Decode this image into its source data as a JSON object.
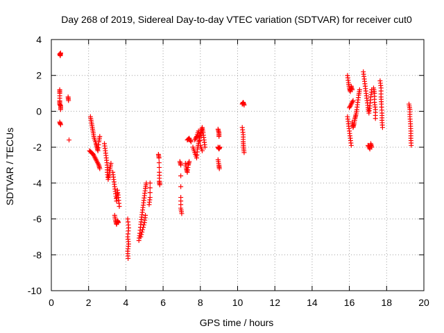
{
  "chart_data": {
    "type": "scatter",
    "title": "Day 268 of 2019, Sidereal Day-to-day VTEC variation (SDTVAR) for receiver cut0",
    "xlabel": "GPS time / hours",
    "ylabel": "SDTVAR / TECUs",
    "xlim": [
      0,
      20
    ],
    "ylim": [
      -10,
      4
    ],
    "x_ticks": [
      0,
      2,
      4,
      6,
      8,
      10,
      12,
      14,
      16,
      18,
      20
    ],
    "y_ticks": [
      -10,
      -8,
      -6,
      -4,
      -2,
      0,
      2,
      4
    ],
    "x_tick_labels": [
      "0",
      "2",
      "4",
      "6",
      "8",
      "10",
      "12",
      "14",
      "16",
      "18",
      "20"
    ],
    "y_tick_labels": [
      "-10",
      "-8",
      "-6",
      "-4",
      "-2",
      "0",
      "2",
      "4"
    ],
    "grid": true,
    "marker": "plus",
    "color": "#ff0000",
    "series": [
      {
        "name": "SDTVAR",
        "segments": [
          [
            [
              0.45,
              3.2
            ],
            [
              0.48,
              3.1
            ],
            [
              0.5,
              3.25
            ]
          ],
          [
            [
              0.45,
              1.2
            ],
            [
              0.45,
              1.0
            ],
            [
              0.45,
              0.6
            ],
            [
              0.45,
              0.4
            ],
            [
              0.5,
              0.3
            ],
            [
              0.5,
              0.1
            ]
          ],
          [
            [
              0.45,
              -0.6
            ],
            [
              0.5,
              -0.75
            ]
          ],
          [
            [
              0.9,
              0.8
            ],
            [
              0.92,
              0.6
            ]
          ],
          [
            [
              0.95,
              -1.6
            ]
          ],
          [
            [
              2.1,
              -0.3
            ],
            [
              2.15,
              -0.6
            ],
            [
              2.2,
              -0.9
            ],
            [
              2.25,
              -1.2
            ],
            [
              2.3,
              -1.5
            ],
            [
              2.4,
              -1.8
            ],
            [
              2.45,
              -2.0
            ],
            [
              2.5,
              -2.2
            ],
            [
              2.55,
              -1.7
            ],
            [
              2.6,
              -1.4
            ]
          ],
          [
            [
              2.05,
              -2.2
            ],
            [
              2.15,
              -2.3
            ],
            [
              2.25,
              -2.4
            ],
            [
              2.35,
              -2.6
            ],
            [
              2.45,
              -2.8
            ],
            [
              2.55,
              -3.0
            ],
            [
              2.6,
              -3.2
            ]
          ],
          [
            [
              2.85,
              -1.8
            ],
            [
              2.9,
              -2.2
            ],
            [
              2.95,
              -2.6
            ],
            [
              3.0,
              -3.0
            ],
            [
              3.0,
              -3.4
            ],
            [
              3.05,
              -3.8
            ],
            [
              3.1,
              -3.5
            ],
            [
              3.15,
              -3.2
            ],
            [
              3.2,
              -2.9
            ]
          ],
          [
            [
              3.3,
              -3.4
            ],
            [
              3.35,
              -3.8
            ],
            [
              3.4,
              -4.2
            ],
            [
              3.45,
              -4.6
            ],
            [
              3.5,
              -5.0
            ],
            [
              3.55,
              -4.4
            ],
            [
              3.6,
              -4.8
            ],
            [
              3.65,
              -5.3
            ]
          ],
          [
            [
              3.4,
              -5.8
            ],
            [
              3.45,
              -6.1
            ],
            [
              3.5,
              -6.3
            ],
            [
              3.55,
              -6.1
            ],
            [
              3.6,
              -6.2
            ]
          ],
          [
            [
              4.1,
              -6.0
            ],
            [
              4.15,
              -6.5
            ],
            [
              4.1,
              -7.0
            ],
            [
              4.15,
              -7.4
            ],
            [
              4.1,
              -7.8
            ],
            [
              4.12,
              -8.2
            ]
          ],
          [
            [
              4.7,
              -7.2
            ],
            [
              4.75,
              -6.8
            ],
            [
              4.8,
              -6.3
            ],
            [
              4.85,
              -5.9
            ],
            [
              4.9,
              -5.5
            ],
            [
              4.95,
              -5.1
            ],
            [
              5.0,
              -4.7
            ],
            [
              5.05,
              -4.3
            ],
            [
              5.1,
              -4.0
            ]
          ],
          [
            [
              4.8,
              -7.0
            ],
            [
              4.9,
              -6.6
            ],
            [
              5.0,
              -6.2
            ],
            [
              5.05,
              -5.8
            ]
          ],
          [
            [
              5.25,
              -5.2
            ],
            [
              5.3,
              -4.8
            ],
            [
              5.3,
              -4.0
            ]
          ],
          [
            [
              5.75,
              -2.4
            ],
            [
              5.78,
              -2.6
            ],
            [
              5.8,
              -3.4
            ],
            [
              5.8,
              -3.9
            ],
            [
              5.82,
              -4.1
            ]
          ],
          [
            [
              6.9,
              -2.8
            ],
            [
              6.95,
              -3.0
            ],
            [
              6.95,
              -4.8
            ],
            [
              6.95,
              -5.4
            ],
            [
              7.0,
              -5.7
            ]
          ],
          [
            [
              7.2,
              -2.9
            ],
            [
              7.25,
              -3.2
            ],
            [
              7.3,
              -3.4
            ],
            [
              7.35,
              -3.0
            ],
            [
              7.4,
              -2.8
            ]
          ],
          [
            [
              7.3,
              -1.6
            ],
            [
              7.4,
              -1.5
            ],
            [
              7.5,
              -1.7
            ]
          ],
          [
            [
              7.6,
              -2.0
            ],
            [
              7.7,
              -2.3
            ],
            [
              7.8,
              -2.6
            ],
            [
              7.85,
              -2.1
            ],
            [
              7.9,
              -1.8
            ],
            [
              7.95,
              -1.5
            ],
            [
              8.0,
              -1.3
            ],
            [
              8.05,
              -1.1
            ],
            [
              8.1,
              -0.9
            ],
            [
              8.15,
              -1.2
            ],
            [
              8.2,
              -1.6
            ],
            [
              8.25,
              -2.0
            ]
          ],
          [
            [
              7.7,
              -1.6
            ],
            [
              7.8,
              -1.4
            ],
            [
              7.9,
              -1.1
            ],
            [
              8.0,
              -1.9
            ],
            [
              8.1,
              -2.2
            ]
          ],
          [
            [
              8.95,
              -1.0
            ],
            [
              9.0,
              -1.2
            ],
            [
              9.0,
              -1.4
            ]
          ],
          [
            [
              8.95,
              -2.0
            ],
            [
              9.0,
              -2.1
            ],
            [
              9.05,
              -2.0
            ]
          ],
          [
            [
              8.95,
              -2.7
            ],
            [
              9.0,
              -3.0
            ],
            [
              9.02,
              -3.2
            ]
          ],
          [
            [
              10.25,
              0.4
            ],
            [
              10.3,
              0.5
            ],
            [
              10.35,
              0.35
            ]
          ],
          [
            [
              10.25,
              -0.9
            ],
            [
              10.3,
              -1.3
            ],
            [
              10.3,
              -1.7
            ],
            [
              10.32,
              -2.0
            ],
            [
              10.35,
              -2.3
            ]
          ],
          [
            [
              15.9,
              2.0
            ],
            [
              15.95,
              1.6
            ],
            [
              16.0,
              1.3
            ],
            [
              16.05,
              1.1
            ],
            [
              16.1,
              1.4
            ],
            [
              16.15,
              1.2
            ]
          ],
          [
            [
              15.9,
              -0.3
            ],
            [
              15.95,
              -0.7
            ],
            [
              16.0,
              -1.1
            ],
            [
              16.05,
              -1.5
            ],
            [
              16.1,
              -1.9
            ]
          ],
          [
            [
              16.15,
              -0.6
            ],
            [
              16.2,
              -0.9
            ],
            [
              16.25,
              -0.7
            ],
            [
              16.3,
              -0.4
            ],
            [
              16.35,
              -0.2
            ],
            [
              16.4,
              0.1
            ],
            [
              16.45,
              0.5
            ],
            [
              16.5,
              0.9
            ],
            [
              16.55,
              1.2
            ]
          ],
          [
            [
              16.0,
              0.2
            ],
            [
              16.1,
              0.4
            ],
            [
              16.2,
              0.6
            ]
          ],
          [
            [
              16.75,
              2.2
            ],
            [
              16.8,
              1.8
            ],
            [
              16.85,
              1.4
            ],
            [
              16.9,
              1.0
            ],
            [
              16.95,
              0.6
            ],
            [
              17.0,
              0.2
            ],
            [
              17.05,
              -0.1
            ],
            [
              17.1,
              0.3
            ],
            [
              17.15,
              0.8
            ],
            [
              17.2,
              1.2
            ]
          ],
          [
            [
              17.0,
              -1.9
            ],
            [
              17.1,
              -2.1
            ],
            [
              17.15,
              -1.8
            ],
            [
              17.2,
              -2.0
            ]
          ],
          [
            [
              17.3,
              1.3
            ],
            [
              17.35,
              1.0
            ],
            [
              17.35,
              0.5
            ],
            [
              17.4,
              0.1
            ],
            [
              17.4,
              -0.4
            ]
          ],
          [
            [
              17.65,
              1.7
            ],
            [
              17.7,
              1.3
            ],
            [
              17.7,
              0.8
            ],
            [
              17.72,
              0.4
            ],
            [
              17.75,
              -0.1
            ],
            [
              17.75,
              -0.5
            ],
            [
              17.78,
              -0.9
            ]
          ],
          [
            [
              19.2,
              0.4
            ],
            [
              19.25,
              0.1
            ],
            [
              19.25,
              -0.3
            ],
            [
              19.28,
              -0.7
            ],
            [
              19.3,
              -1.1
            ],
            [
              19.3,
              -1.5
            ],
            [
              19.32,
              -1.9
            ]
          ]
        ]
      }
    ]
  }
}
